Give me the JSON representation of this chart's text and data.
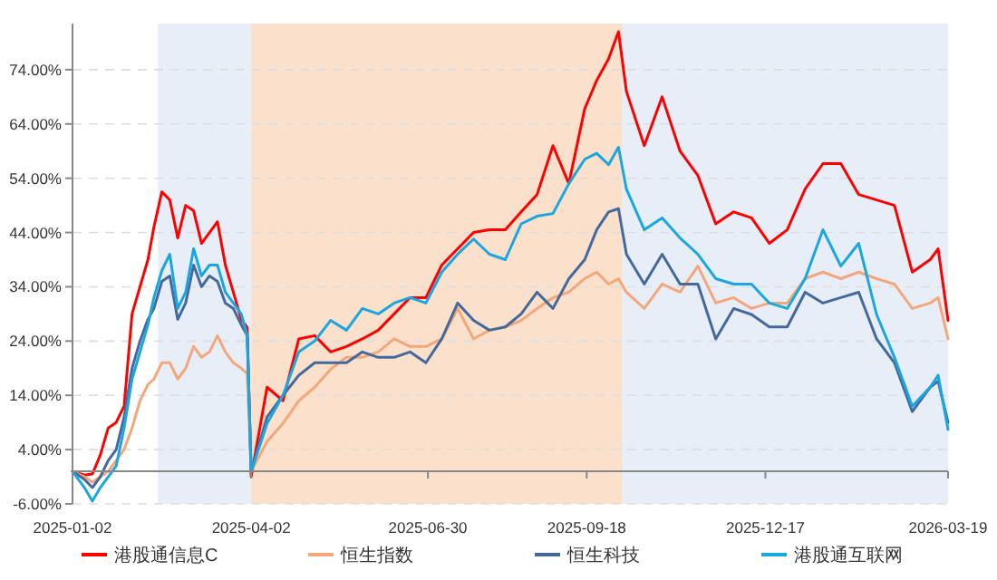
{
  "chart_data": {
    "type": "line",
    "x": [
      "2025-01-02",
      "2025-01-08",
      "2025-01-12",
      "2025-01-16",
      "2025-01-20",
      "2025-01-24",
      "2025-01-28",
      "2025-02-01",
      "2025-02-05",
      "2025-02-09",
      "2025-02-12",
      "2025-02-16",
      "2025-02-20",
      "2025-02-24",
      "2025-02-28",
      "2025-03-04",
      "2025-03-08",
      "2025-03-12",
      "2025-03-16",
      "2025-03-20",
      "2025-03-24",
      "2025-03-28",
      "2025-03-31",
      "2025-04-02",
      "2025-04-10",
      "2025-04-18",
      "2025-04-26",
      "2025-05-04",
      "2025-05-12",
      "2025-05-20",
      "2025-05-28",
      "2025-06-05",
      "2025-06-13",
      "2025-06-21",
      "2025-06-29",
      "2025-07-07",
      "2025-07-15",
      "2025-07-23",
      "2025-07-31",
      "2025-08-08",
      "2025-08-16",
      "2025-08-24",
      "2025-09-01",
      "2025-09-09",
      "2025-09-17",
      "2025-09-23",
      "2025-09-29",
      "2025-10-04",
      "2025-10-08",
      "2025-10-17",
      "2025-10-26",
      "2025-11-04",
      "2025-11-13",
      "2025-11-22",
      "2025-12-01",
      "2025-12-10",
      "2025-12-19",
      "2025-12-28",
      "2026-01-06",
      "2026-01-15",
      "2026-01-24",
      "2026-02-02",
      "2026-02-11",
      "2026-02-20",
      "2026-03-01",
      "2026-03-10",
      "2026-03-14",
      "2026-03-19"
    ],
    "series": [
      {
        "name": "港股通信息C",
        "color": "#ff0000",
        "values": [
          0,
          -0.7,
          -0.5,
          3,
          8,
          9,
          12,
          29,
          34,
          39,
          45,
          51.5,
          50,
          43,
          49,
          48,
          42,
          44,
          46,
          38,
          33,
          28,
          26.5,
          -1,
          15.5,
          13,
          24.4,
          25,
          22,
          23,
          24.4,
          26,
          29,
          32,
          32,
          38,
          41,
          44,
          44.5,
          44.5,
          47.8,
          51,
          60,
          53,
          66.8,
          72,
          76,
          81,
          70,
          60,
          69,
          59,
          54.5,
          45.6,
          47.8,
          46.7,
          42,
          44.5,
          52,
          56.7,
          56.7,
          51,
          50,
          49,
          36.7,
          39,
          41,
          27.8
        ]
      },
      {
        "name": "恒生指数",
        "color": "#f4a77a",
        "values": [
          0,
          -1,
          -2,
          -1,
          0,
          2,
          4,
          8,
          13,
          16,
          17,
          20,
          20,
          17,
          19,
          23,
          21,
          22,
          25,
          22,
          20,
          19,
          18,
          0,
          5.5,
          8.8,
          13,
          15.5,
          18.8,
          21,
          21,
          22,
          24.4,
          23,
          23,
          24.4,
          30,
          24.4,
          26,
          26.6,
          27.8,
          30,
          32,
          33,
          35.5,
          36.7,
          34.5,
          35.5,
          33,
          30,
          34.5,
          33,
          37.8,
          31,
          32,
          30,
          31,
          31,
          35.5,
          36.7,
          35.5,
          36.7,
          35.5,
          34.5,
          30,
          31,
          32,
          24.4
        ]
      },
      {
        "name": "恒生科技",
        "color": "#44699d",
        "values": [
          0,
          -1.5,
          -3,
          -1,
          2,
          4,
          10,
          19,
          24,
          28,
          30,
          35,
          36,
          28,
          31,
          38,
          34,
          36,
          35,
          31,
          30,
          27,
          25,
          0,
          10,
          14,
          17.7,
          20,
          20,
          20,
          22,
          21,
          21,
          22,
          20,
          24.4,
          31,
          27.8,
          26,
          26.6,
          29,
          33,
          30,
          35.5,
          39,
          44.5,
          47.8,
          48.4,
          40,
          34.5,
          40,
          34.5,
          34.5,
          24.4,
          30,
          28.9,
          26.6,
          26.6,
          33,
          31,
          32,
          33,
          24.4,
          20,
          11,
          15.5,
          16.6,
          9
        ]
      },
      {
        "name": "港股通互联网",
        "color": "#1aa7e0",
        "values": [
          0,
          -3,
          -5.5,
          -3,
          -1,
          1,
          8,
          17,
          22,
          27,
          32,
          37,
          40,
          30,
          33,
          41,
          36,
          38,
          38,
          33,
          31,
          29,
          25,
          0,
          8.8,
          14,
          22,
          24,
          27.8,
          26,
          30,
          29,
          31,
          32,
          31,
          36.7,
          40,
          42.8,
          40,
          39,
          45.6,
          47,
          47.5,
          53,
          57.5,
          58.6,
          56.5,
          59.7,
          52,
          44.5,
          46.7,
          43,
          40,
          35.5,
          34.5,
          34.5,
          31,
          30,
          35.5,
          44.5,
          37.8,
          42,
          28.9,
          21,
          12,
          15.5,
          17.7,
          7.7
        ]
      }
    ],
    "xlim": [
      "2025-01-02",
      "2026-03-19"
    ],
    "xticks": [
      "2025-01-02",
      "2025-04-02",
      "2025-06-30",
      "2025-09-18",
      "2025-12-17",
      "2026-03-19"
    ],
    "ylim": [
      -6,
      82.5
    ],
    "yticks": [
      {
        "value": -6,
        "label": "-6.00%"
      },
      {
        "value": 4,
        "label": "4.00%"
      },
      {
        "value": 14,
        "label": "14.00%"
      },
      {
        "value": 24,
        "label": "24.00%"
      },
      {
        "value": 34,
        "label": "34.00%"
      },
      {
        "value": 44,
        "label": "44.00%"
      },
      {
        "value": 54,
        "label": "54.00%"
      },
      {
        "value": 64,
        "label": "64.00%"
      },
      {
        "value": 74,
        "label": "74.00%"
      }
    ],
    "bands": [
      {
        "axis": "x",
        "from": "2025-02-14",
        "to": "2025-04-02",
        "color": "#e8eef8"
      },
      {
        "axis": "x",
        "from": "2025-04-02",
        "to": "2025-10-06",
        "color": "#fbe0cc"
      },
      {
        "axis": "x",
        "from": "2025-10-06",
        "to": "2026-03-19",
        "color": "#e8eef8"
      }
    ],
    "grid": "y",
    "legend": "bottom",
    "marker": "none",
    "line_style": "solid"
  }
}
